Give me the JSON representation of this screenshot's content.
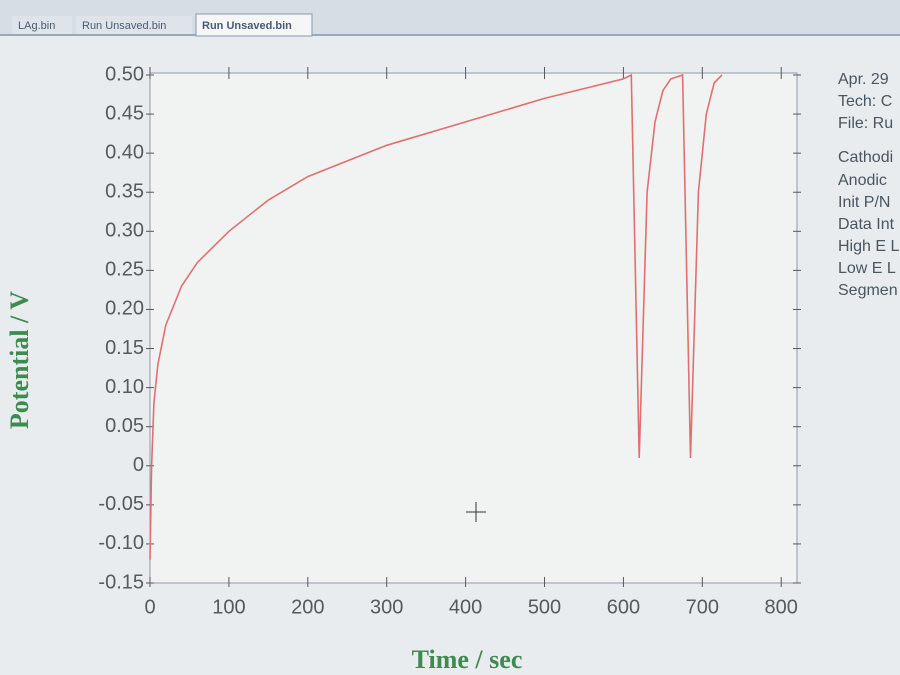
{
  "tabs": [
    "LAg.bin",
    "Run Unsaved.bin",
    "Run Unsaved.bin"
  ],
  "info": [
    "Apr. 29",
    "Tech: C",
    "File: Ru",
    "Cathodi",
    "Anodic",
    "Init P/N",
    "Data Int",
    "High E L",
    "Low E L",
    "Segmen"
  ],
  "chart_data": {
    "type": "line",
    "xlabel": "Time / sec",
    "ylabel": "Potential / V",
    "xlim": [
      0,
      820
    ],
    "ylim": [
      -0.15,
      0.5
    ],
    "xticks": [
      0,
      100,
      200,
      300,
      400,
      500,
      600,
      700,
      800
    ],
    "yticks": [
      {
        "value": 0.5,
        "label": "0.50"
      },
      0.45,
      {
        "value": 0.4,
        "label": "0.40"
      },
      0.35,
      {
        "value": 0.3,
        "label": "0.30"
      },
      0.25,
      {
        "value": 0.2,
        "label": "0.20"
      },
      0.15,
      {
        "value": 0.1,
        "label": "0.10"
      },
      0.05,
      0,
      -0.05,
      {
        "value": -0.1,
        "label": "-0.10"
      },
      -0.15
    ],
    "series": [
      {
        "name": "Potential",
        "color": "#e07070",
        "x": [
          0,
          2,
          5,
          10,
          20,
          40,
          60,
          100,
          150,
          200,
          300,
          400,
          500,
          600,
          610,
          620,
          630,
          640,
          650,
          660,
          675,
          685,
          695,
          705,
          715,
          725
        ],
        "values": [
          -0.12,
          0,
          0.08,
          0.13,
          0.18,
          0.23,
          0.26,
          0.3,
          0.34,
          0.37,
          0.41,
          0.44,
          0.47,
          0.495,
          0.5,
          0.01,
          0.35,
          0.44,
          0.48,
          0.495,
          0.5,
          0.01,
          0.35,
          0.45,
          0.49,
          0.5
        ]
      }
    ]
  }
}
